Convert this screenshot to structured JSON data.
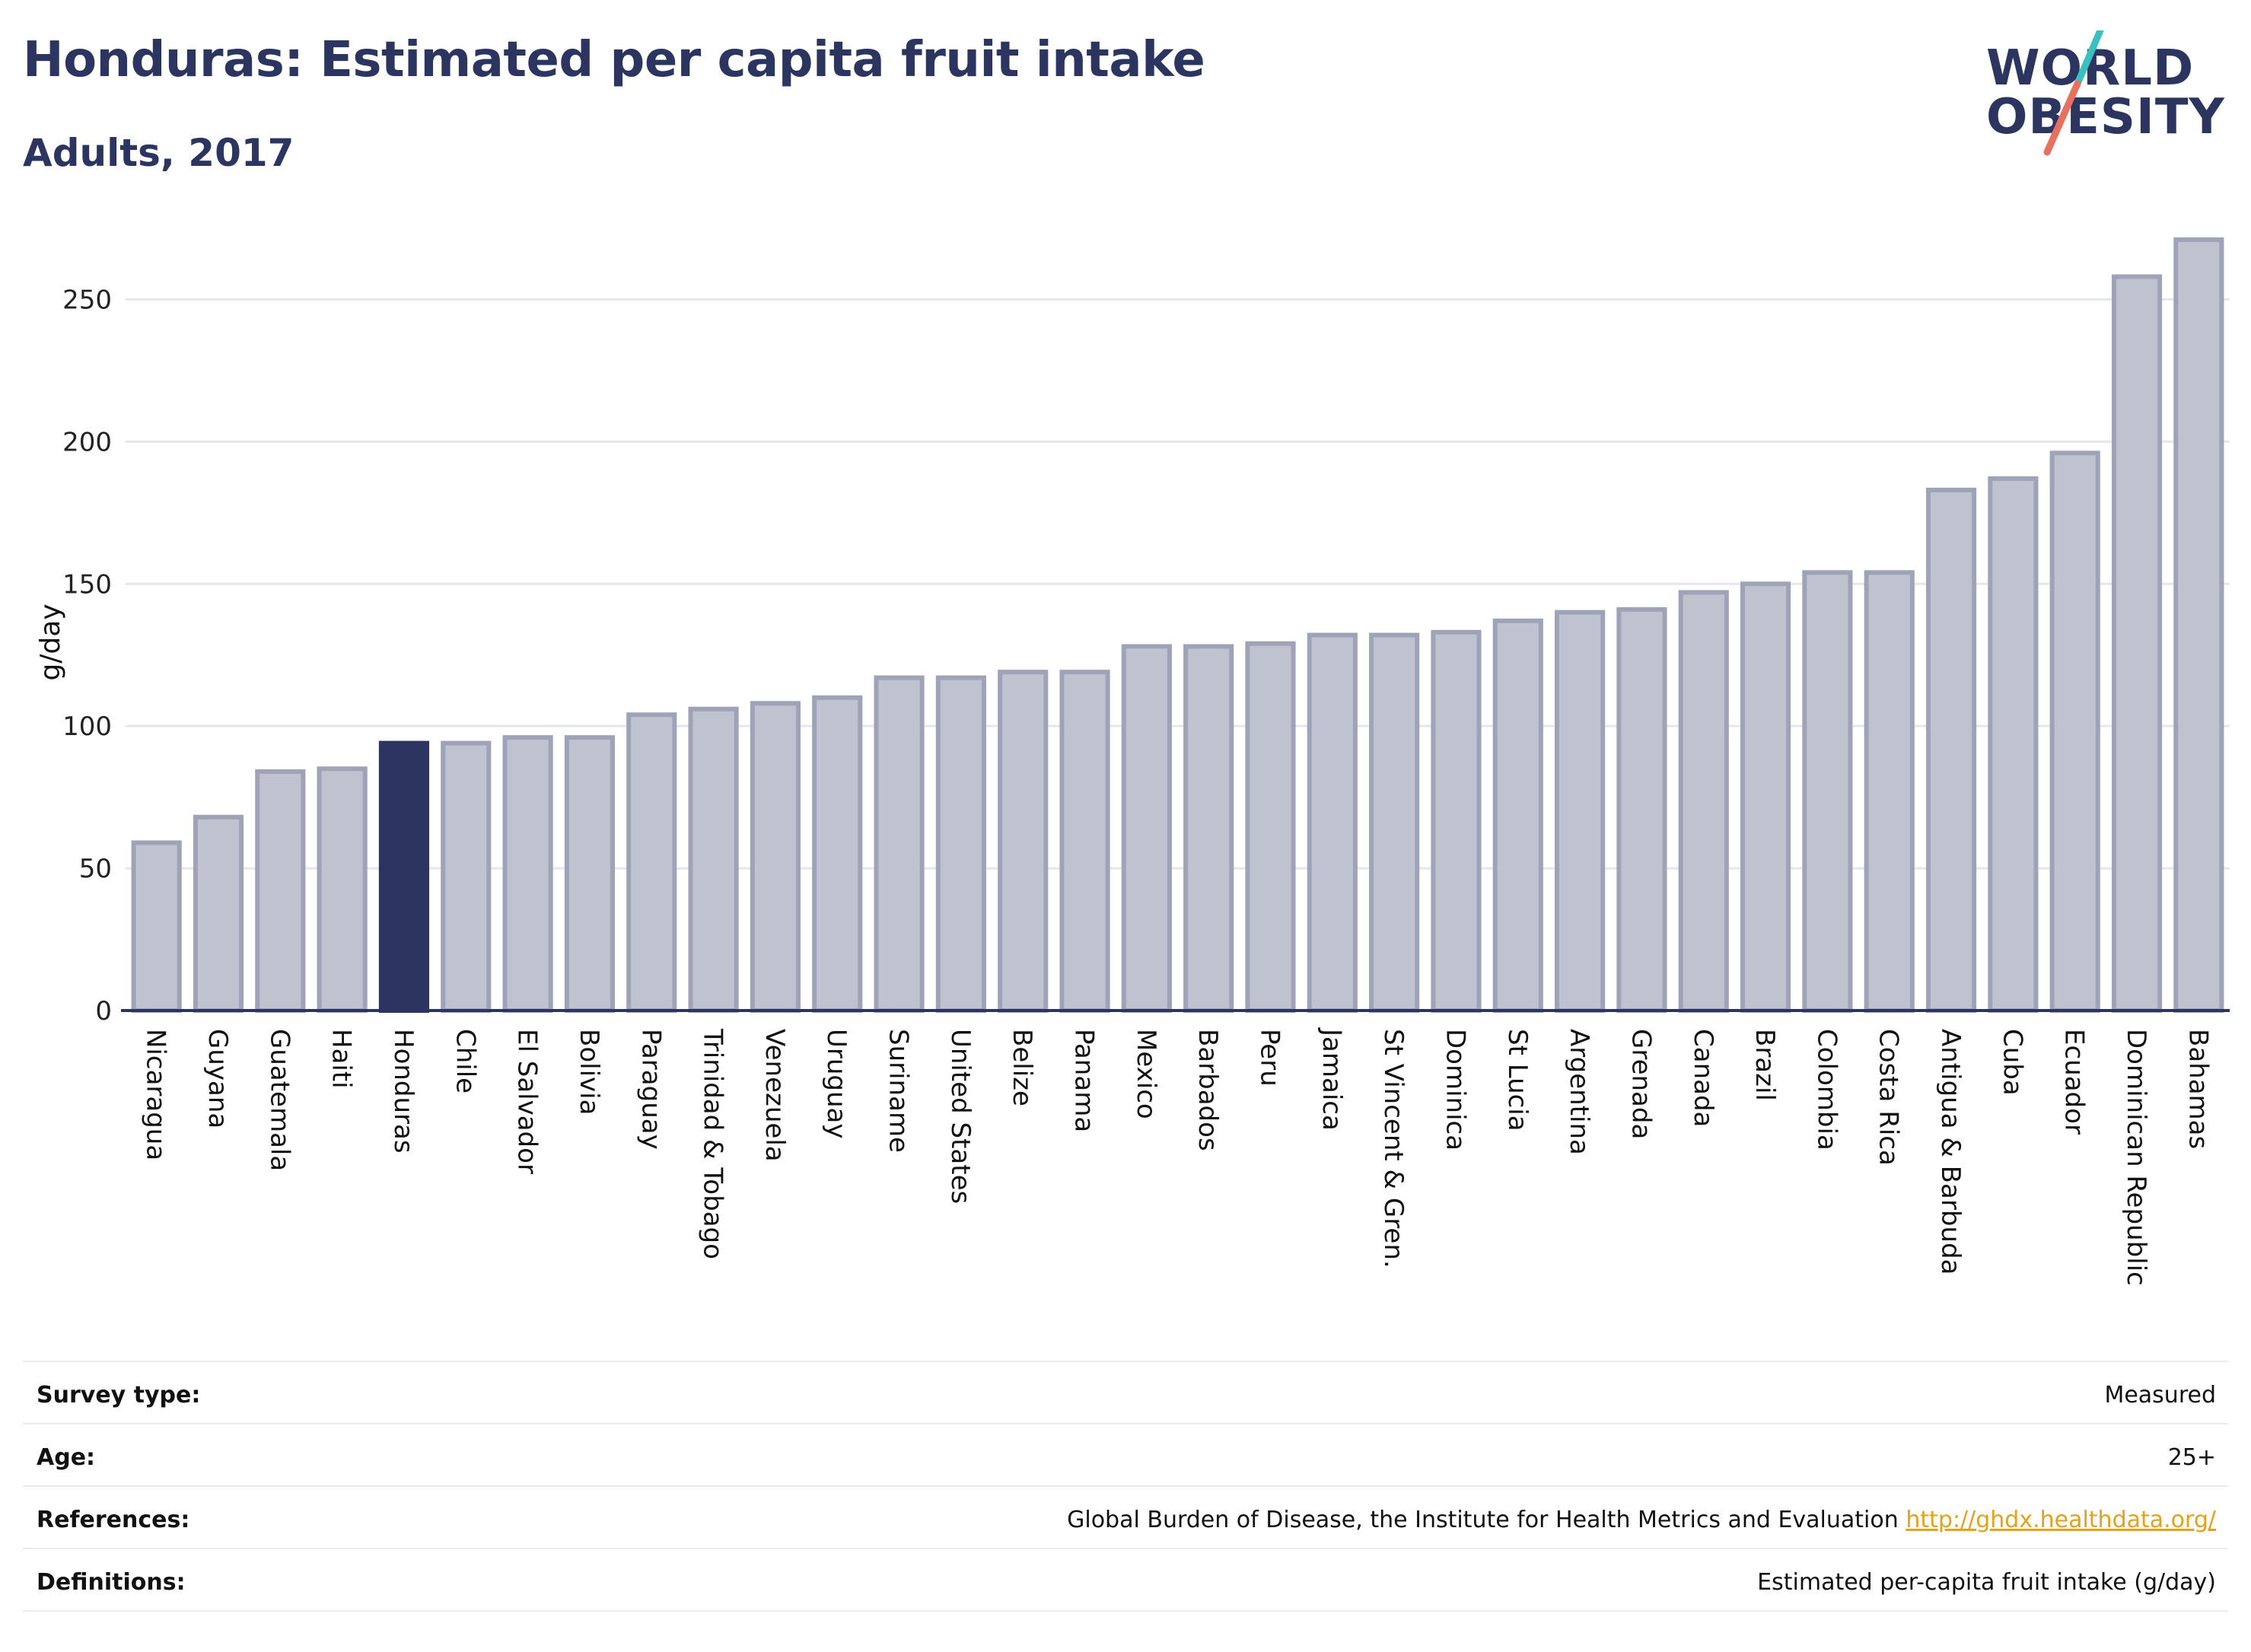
{
  "header": {
    "title": "Honduras: Estimated per capita fruit intake",
    "subtitle": "Adults, 2017"
  },
  "logo": {
    "line1": "WORLD",
    "line2": "OBESITY",
    "colors": {
      "text": "#2b3560",
      "accent_teal": "#3bbfc0",
      "accent_coral": "#e8705e"
    }
  },
  "chart_data": {
    "type": "bar",
    "title": "Honduras: Estimated per capita fruit intake",
    "subtitle": "Adults, 2017",
    "xlabel": "",
    "ylabel": "g/day",
    "ylim": [
      0,
      275
    ],
    "yticks": [
      0,
      50,
      100,
      150,
      200,
      250
    ],
    "grid": true,
    "highlight": "Honduras",
    "colors": {
      "bar": "#bfc3cf",
      "bar_border": "#9ea3b8",
      "highlight": "#2b3560",
      "grid": "#e5e7ec",
      "axis": "#2b3560"
    },
    "categories": [
      "Nicaragua",
      "Guyana",
      "Guatemala",
      "Haiti",
      "Honduras",
      "Chile",
      "El Salvador",
      "Bolivia",
      "Paraguay",
      "Trinidad & Tobago",
      "Venezuela",
      "Uruguay",
      "Suriname",
      "United States",
      "Belize",
      "Panama",
      "Mexico",
      "Barbados",
      "Peru",
      "Jamaica",
      "St Vincent & Gren.",
      "Dominica",
      "St Lucia",
      "Argentina",
      "Grenada",
      "Canada",
      "Brazil",
      "Colombia",
      "Costa Rica",
      "Antigua & Barbuda",
      "Cuba",
      "Ecuador",
      "Dominican Republic",
      "Bahamas"
    ],
    "values": [
      59,
      68,
      84,
      85,
      94,
      94,
      96,
      96,
      104,
      106,
      108,
      110,
      117,
      117,
      119,
      119,
      128,
      128,
      129,
      132,
      132,
      133,
      137,
      140,
      141,
      147,
      150,
      154,
      154,
      183,
      187,
      196,
      258,
      271
    ]
  },
  "meta": {
    "rows": [
      {
        "key": "Survey type:",
        "value": "Measured"
      },
      {
        "key": "Age:",
        "value": "25+"
      },
      {
        "key": "References:",
        "value": "Global Burden of Disease, the Institute for Health Metrics and Evaluation",
        "link": "http://ghdx.healthdata.org/"
      },
      {
        "key": "Definitions:",
        "value": "Estimated per-capita fruit intake (g/day)"
      }
    ]
  }
}
